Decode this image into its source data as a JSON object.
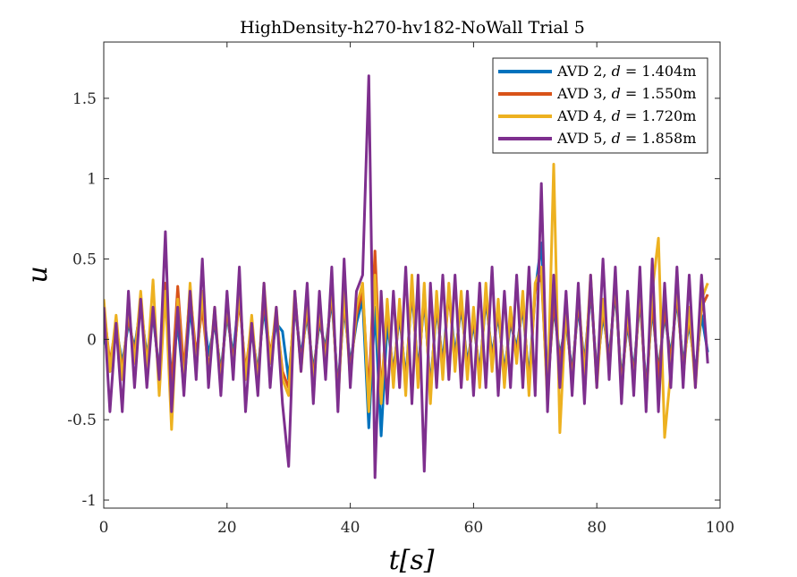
{
  "chart_data": {
    "type": "line",
    "title": "HighDensity-h270-hv182-NoWall Trial 5",
    "xlabel": "t[s]",
    "ylabel": "u",
    "xlim": [
      0,
      100
    ],
    "ylim": [
      -1.05,
      1.85
    ],
    "xticks": [
      0,
      20,
      40,
      60,
      80,
      100
    ],
    "xtick_labels": [
      "0",
      "20",
      "40",
      "60",
      "80",
      "100"
    ],
    "yticks": [
      -1,
      -0.5,
      0,
      0.5,
      1,
      1.5
    ],
    "ytick_labels": [
      "-1",
      "-0.5",
      "0",
      "0.5",
      "1",
      "1.5"
    ],
    "grid": false,
    "legend_position": "top-right",
    "series": [
      {
        "name": "AVD 2, d = 1.404m",
        "legend_prefix": "AVD 2, ",
        "legend_var": "d",
        "legend_suffix": " = 1.404m",
        "color": "#0072BD",
        "x": [
          0,
          1,
          2,
          3,
          4,
          5,
          6,
          7,
          8,
          9,
          10,
          11,
          12,
          13,
          14,
          15,
          16,
          17,
          18,
          19,
          20,
          21,
          22,
          23,
          24,
          25,
          26,
          27,
          28,
          29,
          30,
          31,
          32,
          33,
          34,
          35,
          36,
          37,
          38,
          39,
          40,
          41,
          42,
          43,
          44,
          45,
          46,
          47,
          48,
          49,
          50,
          51,
          52,
          53,
          54,
          55,
          56,
          57,
          58,
          59,
          60,
          61,
          62,
          63,
          64,
          65,
          66,
          67,
          68,
          69,
          70,
          71,
          72,
          73,
          74,
          75,
          76,
          77,
          78,
          79,
          80,
          81,
          82,
          83,
          84,
          85,
          86,
          87,
          88,
          89,
          90,
          91,
          92,
          93,
          94,
          95,
          96,
          97,
          98
        ],
        "y": [
          0.05,
          -0.2,
          0.08,
          -0.15,
          0.1,
          -0.05,
          0.2,
          -0.1,
          0.15,
          -0.2,
          0.3,
          -0.25,
          0.1,
          -0.3,
          0.2,
          -0.15,
          0.25,
          -0.1,
          0.1,
          -0.2,
          0.15,
          -0.1,
          0.3,
          -0.25,
          0.05,
          -0.2,
          0.2,
          -0.15,
          0.1,
          0.05,
          -0.25,
          0.2,
          -0.1,
          0.15,
          -0.2,
          0.1,
          -0.05,
          0.25,
          -0.3,
          0.2,
          -0.15,
          0.1,
          0.25,
          -0.55,
          0.2,
          -0.6,
          0.1,
          -0.2,
          0.15,
          -0.25,
          0.3,
          -0.2,
          0.25,
          -0.3,
          0.2,
          -0.15,
          0.3,
          -0.1,
          0.2,
          -0.15,
          0.1,
          -0.2,
          0.25,
          -0.1,
          0.15,
          -0.2,
          0.1,
          -0.05,
          0.2,
          -0.25,
          0.3,
          0.6,
          -0.3,
          0.2,
          -0.1,
          0.1,
          -0.2,
          0.2,
          -0.15,
          0.3,
          -0.2,
          0.15,
          -0.1,
          0.3,
          -0.25,
          0.1,
          -0.2,
          0.25,
          -0.3,
          0.2,
          -0.2,
          0.15,
          -0.1,
          0.25,
          -0.15,
          0.1,
          -0.2,
          0.15,
          -0.08
        ]
      },
      {
        "name": "AVD 3, d = 1.550m",
        "legend_prefix": "AVD 3, ",
        "legend_var": "d",
        "legend_suffix": " = 1.550m",
        "color": "#D95319",
        "x": [
          0,
          1,
          2,
          3,
          4,
          5,
          6,
          7,
          8,
          9,
          10,
          11,
          12,
          13,
          14,
          15,
          16,
          17,
          18,
          19,
          20,
          21,
          22,
          23,
          24,
          25,
          26,
          27,
          28,
          29,
          30,
          31,
          32,
          33,
          34,
          35,
          36,
          37,
          38,
          39,
          40,
          41,
          42,
          43,
          44,
          45,
          46,
          47,
          48,
          49,
          50,
          51,
          52,
          53,
          54,
          55,
          56,
          57,
          58,
          59,
          60,
          61,
          62,
          63,
          64,
          65,
          66,
          67,
          68,
          69,
          70,
          71,
          72,
          73,
          74,
          75,
          76,
          77,
          78,
          79,
          80,
          81,
          82,
          83,
          84,
          85,
          86,
          87,
          88,
          89,
          90,
          91,
          92,
          93,
          94,
          95,
          96,
          97,
          98
        ],
        "y": [
          0.2,
          -0.15,
          0.1,
          -0.2,
          0.15,
          -0.1,
          0.25,
          -0.15,
          0.2,
          -0.25,
          0.35,
          -0.3,
          0.33,
          -0.2,
          0.3,
          -0.1,
          0.2,
          -0.2,
          0.15,
          -0.25,
          0.2,
          -0.15,
          0.25,
          -0.2,
          0.1,
          -0.25,
          0.25,
          -0.1,
          0.15,
          -0.2,
          -0.3,
          0.25,
          -0.15,
          0.2,
          -0.25,
          0.15,
          -0.1,
          0.3,
          -0.35,
          0.25,
          -0.2,
          0.15,
          0.3,
          -0.35,
          0.55,
          -0.35,
          0.2,
          -0.25,
          0.2,
          -0.3,
          0.35,
          -0.25,
          0.3,
          -0.35,
          0.25,
          -0.2,
          0.3,
          -0.15,
          0.25,
          -0.2,
          0.15,
          -0.25,
          0.3,
          -0.15,
          0.2,
          -0.25,
          0.15,
          -0.1,
          0.25,
          -0.3,
          0.3,
          0.4,
          -0.35,
          0.25,
          -0.15,
          0.15,
          -0.25,
          0.25,
          -0.2,
          0.35,
          -0.25,
          0.2,
          -0.15,
          0.35,
          -0.3,
          0.15,
          -0.25,
          0.3,
          -0.35,
          0.25,
          -0.25,
          0.2,
          -0.15,
          0.3,
          -0.2,
          0.15,
          -0.25,
          0.2,
          0.28
        ]
      },
      {
        "name": "AVD 4, d = 1.720m",
        "legend_prefix": "AVD 4, ",
        "legend_var": "d",
        "legend_suffix": " = 1.720m",
        "color": "#EDB120",
        "x": [
          0,
          1,
          2,
          3,
          4,
          5,
          6,
          7,
          8,
          9,
          10,
          11,
          12,
          13,
          14,
          15,
          16,
          17,
          18,
          19,
          20,
          21,
          22,
          23,
          24,
          25,
          26,
          27,
          28,
          29,
          30,
          31,
          32,
          33,
          34,
          35,
          36,
          37,
          38,
          39,
          40,
          41,
          42,
          43,
          44,
          45,
          46,
          47,
          48,
          49,
          50,
          51,
          52,
          53,
          54,
          55,
          56,
          57,
          58,
          59,
          60,
          61,
          62,
          63,
          64,
          65,
          66,
          67,
          68,
          69,
          70,
          71,
          72,
          73,
          74,
          75,
          76,
          77,
          78,
          79,
          80,
          81,
          82,
          83,
          84,
          85,
          86,
          87,
          88,
          89,
          90,
          91,
          92,
          93,
          94,
          95,
          96,
          97,
          98
        ],
        "y": [
          0.25,
          -0.2,
          0.15,
          -0.25,
          0.2,
          -0.15,
          0.3,
          -0.2,
          0.37,
          -0.35,
          0.3,
          -0.56,
          0.25,
          -0.3,
          0.35,
          -0.2,
          0.3,
          -0.25,
          0.2,
          -0.3,
          0.25,
          -0.2,
          0.3,
          -0.25,
          0.15,
          -0.3,
          0.35,
          -0.15,
          0.2,
          -0.25,
          -0.35,
          0.3,
          -0.2,
          0.25,
          -0.3,
          0.2,
          -0.15,
          0.35,
          -0.4,
          0.3,
          -0.25,
          0.2,
          0.35,
          -0.45,
          0.4,
          -0.4,
          0.25,
          -0.3,
          0.25,
          -0.35,
          0.4,
          -0.3,
          0.35,
          -0.4,
          0.3,
          -0.25,
          0.35,
          -0.2,
          0.3,
          -0.25,
          0.2,
          -0.3,
          0.35,
          -0.2,
          0.25,
          -0.3,
          0.2,
          -0.15,
          0.3,
          -0.35,
          0.35,
          0.45,
          -0.4,
          1.09,
          -0.58,
          0.2,
          -0.3,
          0.3,
          -0.25,
          0.4,
          -0.3,
          0.25,
          -0.2,
          0.4,
          -0.35,
          0.2,
          -0.3,
          0.35,
          -0.4,
          0.3,
          0.63,
          -0.61,
          -0.2,
          0.35,
          -0.25,
          0.2,
          -0.3,
          0.25,
          0.35
        ]
      },
      {
        "name": "AVD 5, d = 1.858m",
        "legend_prefix": "AVD 5, ",
        "legend_var": "d",
        "legend_suffix": " = 1.858m",
        "color": "#7E2F8E",
        "x": [
          0,
          1,
          2,
          3,
          4,
          5,
          6,
          7,
          8,
          9,
          10,
          11,
          12,
          13,
          14,
          15,
          16,
          17,
          18,
          19,
          20,
          21,
          22,
          23,
          24,
          25,
          26,
          27,
          28,
          29,
          30,
          31,
          32,
          33,
          34,
          35,
          36,
          37,
          38,
          39,
          40,
          41,
          42,
          43,
          44,
          45,
          46,
          47,
          48,
          49,
          50,
          51,
          52,
          53,
          54,
          55,
          56,
          57,
          58,
          59,
          60,
          61,
          62,
          63,
          64,
          65,
          66,
          67,
          68,
          69,
          70,
          71,
          72,
          73,
          74,
          75,
          76,
          77,
          78,
          79,
          80,
          81,
          82,
          83,
          84,
          85,
          86,
          87,
          88,
          89,
          90,
          91,
          92,
          93,
          94,
          95,
          96,
          97,
          98
        ],
        "y": [
          0.2,
          -0.45,
          0.1,
          -0.45,
          0.3,
          -0.3,
          0.25,
          -0.3,
          0.2,
          -0.25,
          0.67,
          -0.45,
          0.2,
          -0.35,
          0.3,
          -0.25,
          0.5,
          -0.3,
          0.2,
          -0.35,
          0.3,
          -0.25,
          0.45,
          -0.45,
          0.1,
          -0.35,
          0.35,
          -0.3,
          0.2,
          -0.4,
          -0.79,
          0.3,
          -0.2,
          0.35,
          -0.4,
          0.3,
          -0.25,
          0.45,
          -0.45,
          0.5,
          -0.3,
          0.3,
          0.4,
          1.64,
          -0.86,
          0.3,
          -0.4,
          0.3,
          -0.3,
          0.45,
          -0.4,
          0.4,
          -0.82,
          0.35,
          -0.3,
          0.4,
          -0.25,
          0.4,
          -0.3,
          0.3,
          -0.35,
          0.35,
          -0.3,
          0.45,
          -0.35,
          0.3,
          -0.3,
          0.4,
          -0.3,
          0.45,
          -0.35,
          0.97,
          -0.45,
          0.4,
          -0.3,
          0.3,
          -0.35,
          0.35,
          -0.4,
          0.4,
          -0.3,
          0.5,
          -0.25,
          0.45,
          -0.4,
          0.3,
          -0.35,
          0.45,
          -0.45,
          0.5,
          -0.45,
          0.35,
          -0.3,
          0.45,
          -0.3,
          0.4,
          -0.3,
          0.4,
          -0.15
        ]
      }
    ]
  }
}
